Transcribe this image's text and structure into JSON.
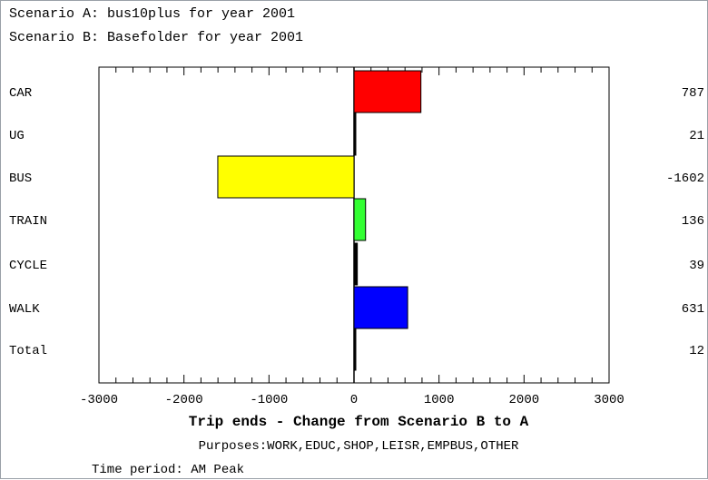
{
  "header": {
    "line1": "Scenario A: bus10plus for year 2001",
    "line2": "Scenario B: Basefolder for year 2001"
  },
  "chart_data": {
    "type": "bar",
    "orientation": "horizontal",
    "categories": [
      "CAR",
      "UG",
      "BUS",
      "TRAIN",
      "CYCLE",
      "WALK",
      "Total"
    ],
    "values": [
      787,
      21,
      -1602,
      136,
      39,
      631,
      12
    ],
    "value_labels": [
      "787",
      "21",
      "-1602",
      "136",
      "39",
      "631",
      "12"
    ],
    "bar_colors": [
      "#ff0000",
      "#000000",
      "#ffff00",
      "#33ff33",
      "#000000",
      "#0000ff",
      "#000000"
    ],
    "xlim": [
      -3000,
      3000
    ],
    "x_ticks": [
      -3000,
      -2000,
      -1000,
      0,
      1000,
      2000,
      3000
    ],
    "x_tick_labels": [
      "-3000",
      "-2000",
      "-1000",
      "0",
      "1000",
      "2000",
      "3000"
    ],
    "xlabel": "Trip ends - Change from Scenario B to A",
    "subtitle": "Purposes:WORK,EDUC,SHOP,LEISR,EMPBUS,OTHER",
    "footnote": "Time period: AM Peak",
    "grid": false
  }
}
